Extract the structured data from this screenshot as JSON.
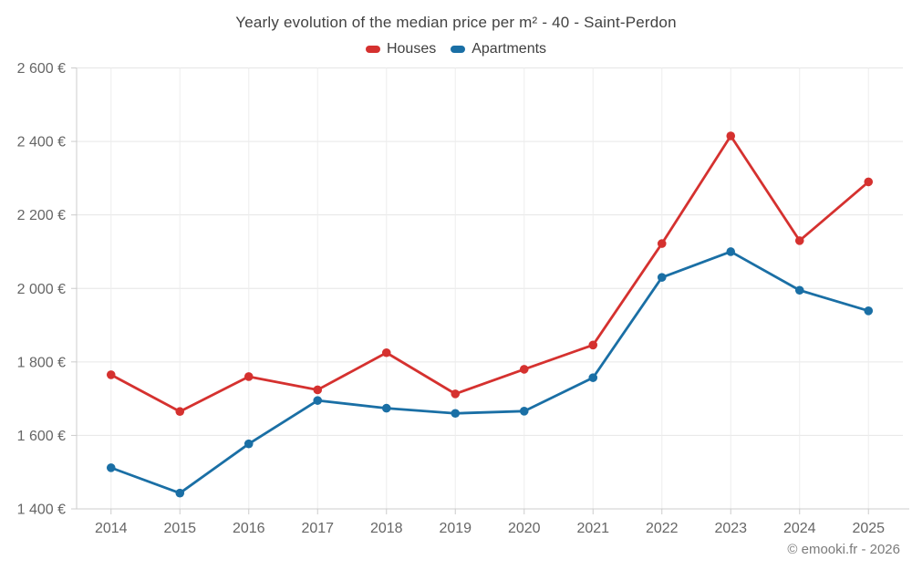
{
  "chart_data": {
    "type": "line",
    "title": "Yearly evolution of the median price per m² - 40 - Saint-Perdon",
    "categories": [
      "2014",
      "2015",
      "2016",
      "2017",
      "2018",
      "2019",
      "2020",
      "2021",
      "2022",
      "2023",
      "2024",
      "2025"
    ],
    "series": [
      {
        "name": "Houses",
        "color": "#d5312f",
        "values": [
          1765,
          1665,
          1760,
          1724,
          1825,
          1713,
          1780,
          1846,
          2122,
          2415,
          2130,
          2290
        ]
      },
      {
        "name": "Apartments",
        "color": "#1a6fa5",
        "values": [
          1512,
          1443,
          1577,
          1695,
          1674,
          1660,
          1666,
          1757,
          2030,
          2100,
          1995,
          1939
        ]
      }
    ],
    "xlabel": "",
    "ylabel": "",
    "ylim": [
      1400,
      2600
    ],
    "ytick_step": 200,
    "ytick_values": [
      1400,
      1600,
      1800,
      2000,
      2200,
      2400,
      2600
    ],
    "ytick_labels": [
      "1 400 €",
      "1 600 €",
      "1 800 €",
      "2 000 €",
      "2 200 €",
      "2 400 €",
      "2 600 €"
    ],
    "grid": true,
    "legend_position": "top",
    "credit": "© emooki.fr - 2026",
    "colors": {
      "grid_horizontal": "#e6e6e6",
      "grid_vertical": "#ededed",
      "axis": "#cccccc",
      "axis_label": "#666666",
      "title_text": "#424242",
      "credit_text": "#7b7b7b"
    }
  }
}
